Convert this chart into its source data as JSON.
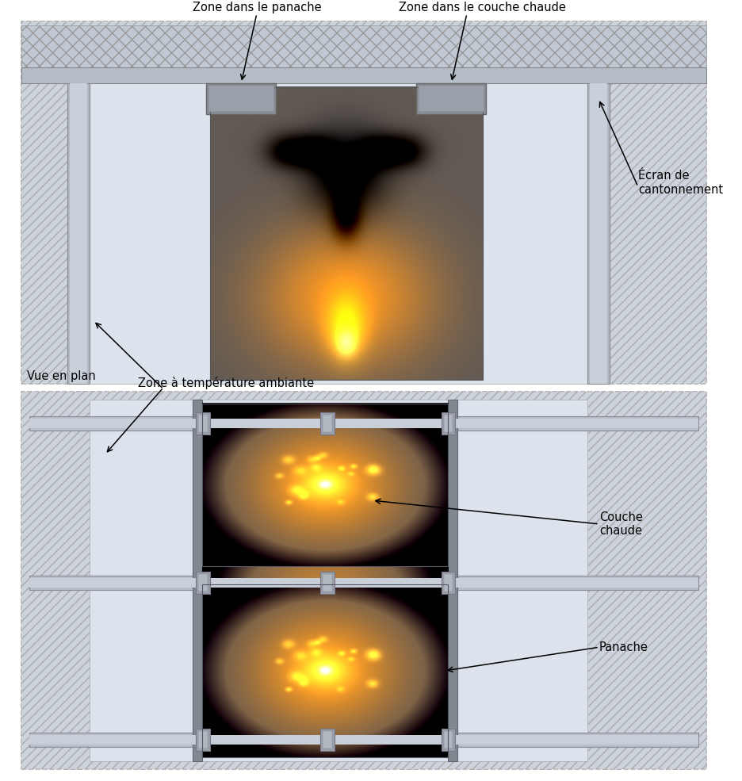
{
  "bg_color": "#ffffff",
  "labels": {
    "zone_panache": "Zone dans le panache",
    "zone_couche": "Zone dans le couche chaude",
    "zone_ambiante": "Zone à température ambiante",
    "ecran": "Écran de\ncantonnement",
    "vue_plan": "Vue en plan",
    "panache": "Panache",
    "couche_chaude": "Couche\nchaude"
  },
  "font_size": 10.5,
  "hatch_color": "#aaaaaa",
  "wall_fc": "#c8cfd8",
  "column_fc": "#b0b8c4",
  "beam_fc": "#b8bfc8",
  "interior_fc": "#dce3ed",
  "fire_box_fc": "#555555"
}
